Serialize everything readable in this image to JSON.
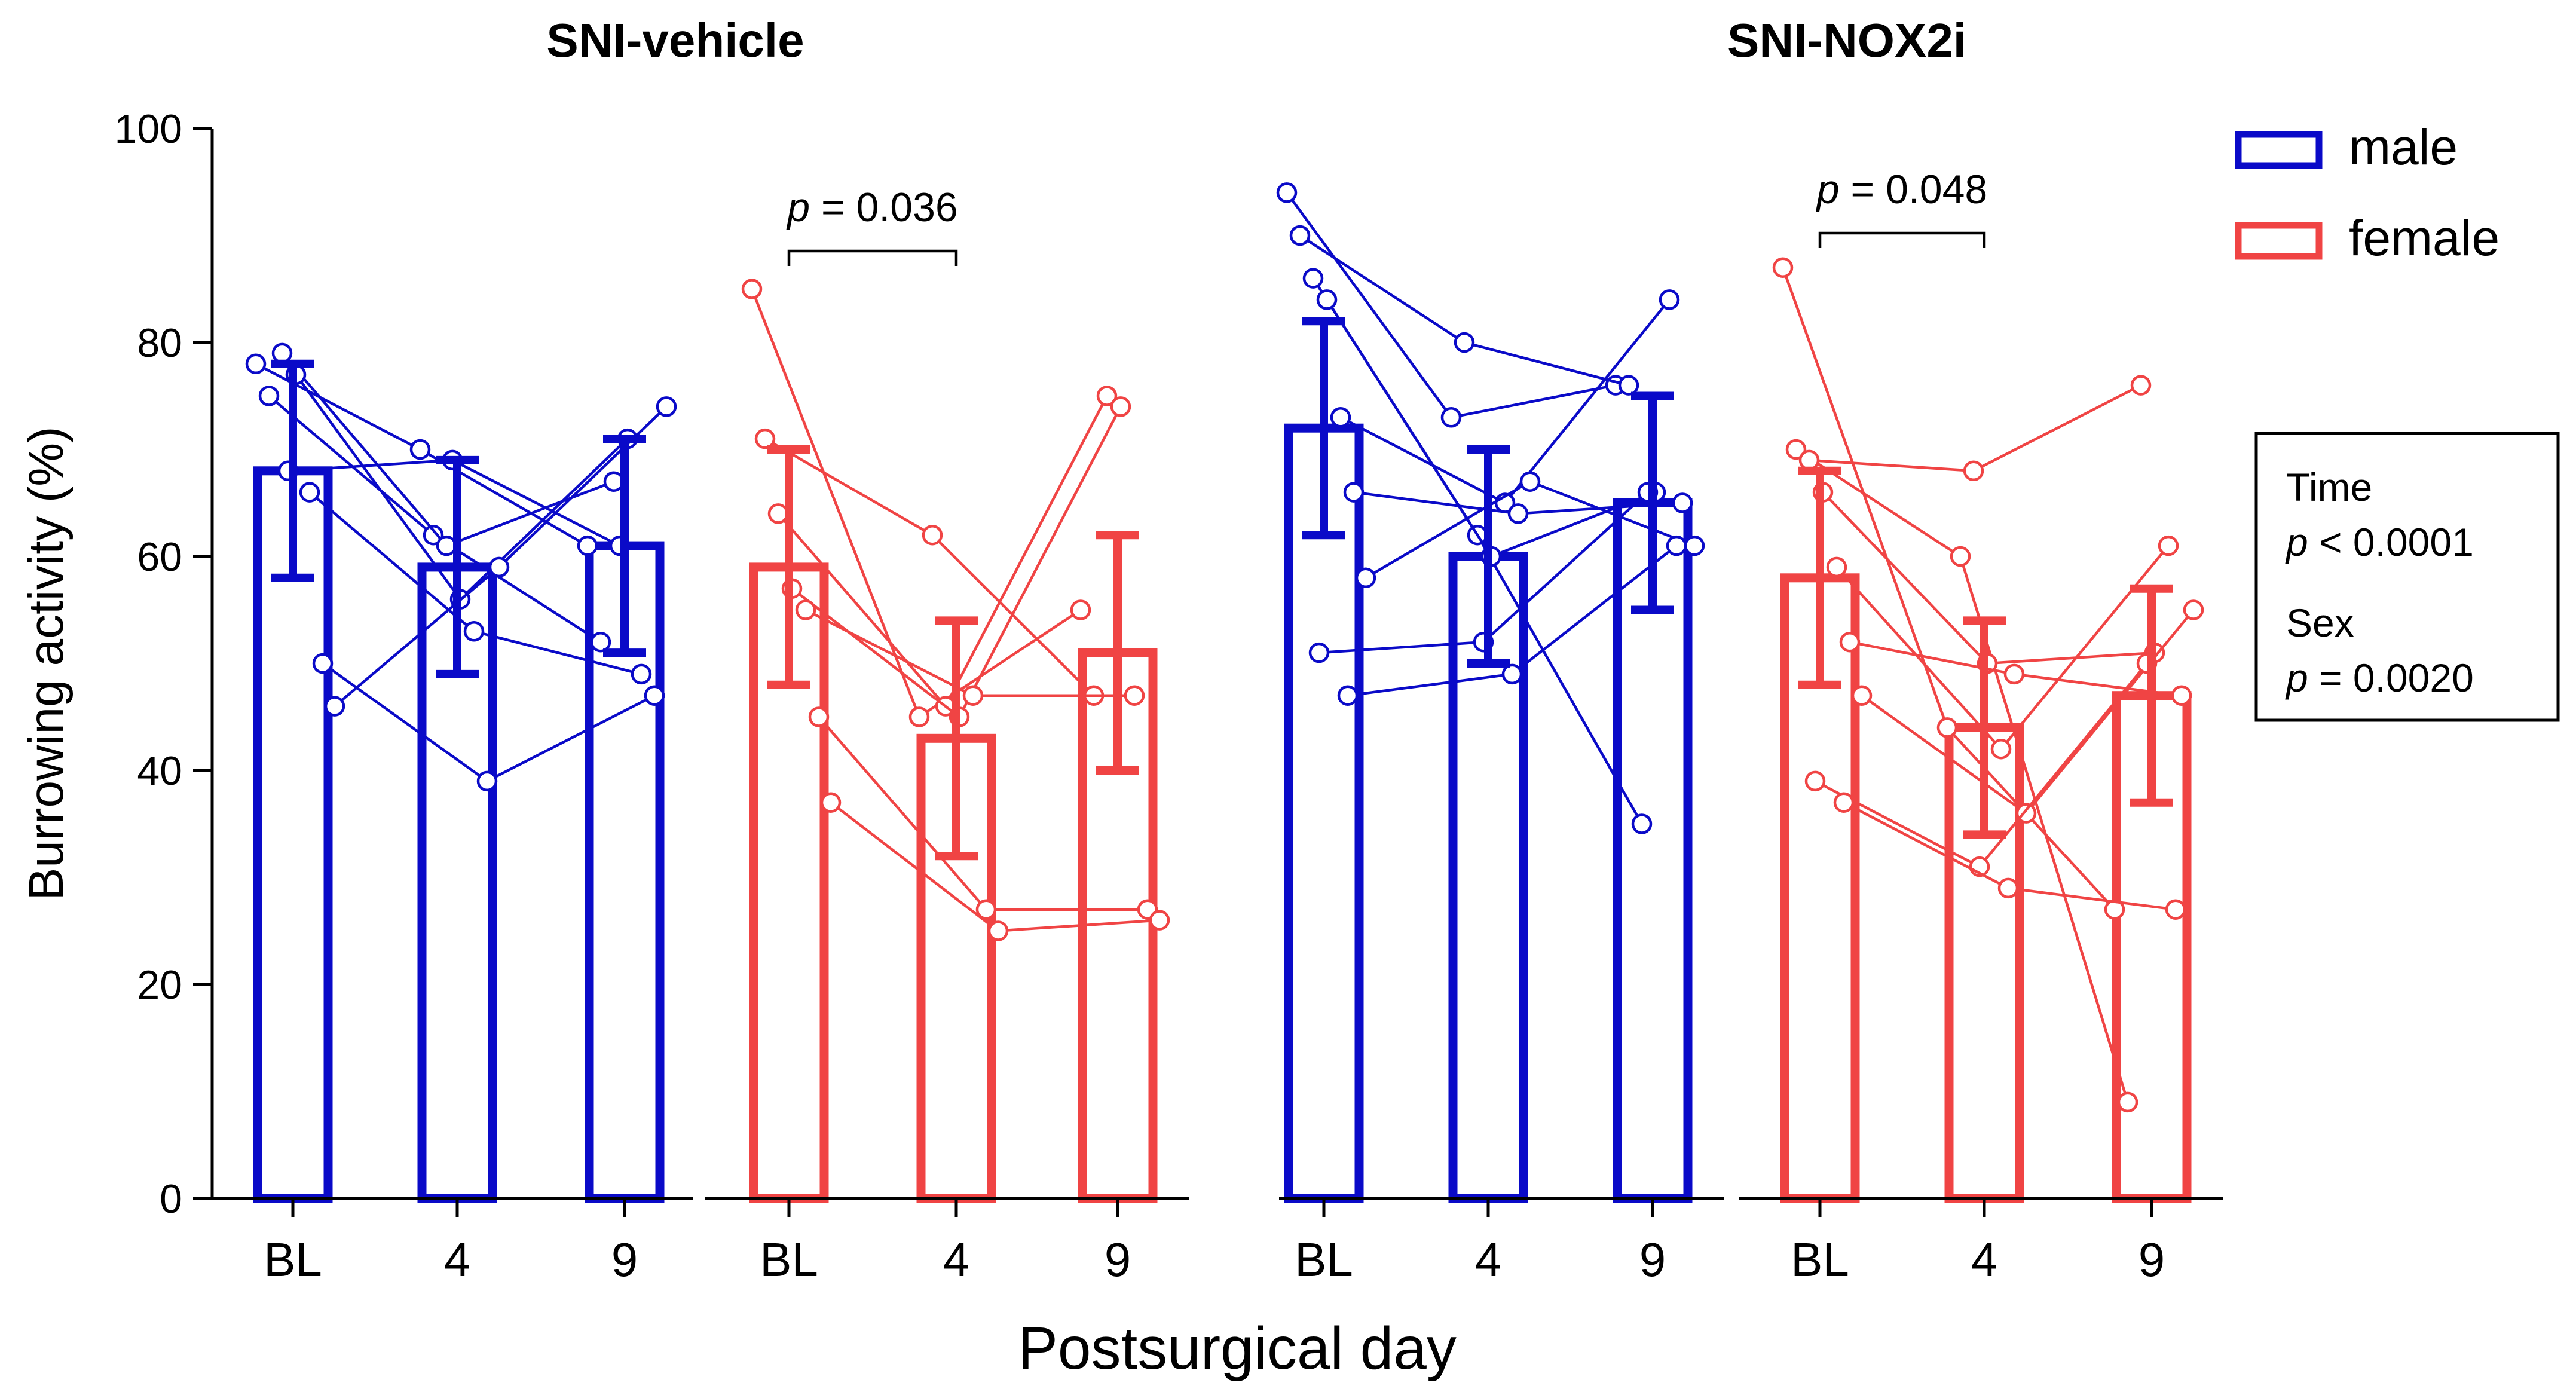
{
  "chart_data": {
    "type": "bar",
    "ylabel": "Burrowing activity  (%)",
    "xlabel": "Postsurgical day",
    "ylim": [
      0,
      100
    ],
    "yticks": [
      0,
      20,
      40,
      60,
      80,
      100
    ],
    "categories": [
      "BL",
      "4",
      "9"
    ],
    "colors": {
      "male": "#0a0ac8",
      "female": "#f04444"
    },
    "legend": {
      "position": "top-right",
      "entries": [
        {
          "label": "male",
          "series": "male"
        },
        {
          "label": "female",
          "series": "female"
        }
      ]
    },
    "stats_box": {
      "time_label": "Time",
      "time_p": "p < 0.0001",
      "sex_label": "Sex",
      "sex_p": "p = 0.0020"
    },
    "panels": [
      {
        "title": "SNI-vehicle",
        "groups": [
          {
            "series": "male",
            "means": [
              68,
              59,
              61
            ],
            "sd": [
              10,
              10,
              10
            ],
            "subjects": [
              [
                78,
                70,
                61
              ],
              [
                75,
                62,
                52
              ],
              [
                79,
                61,
                67
              ],
              [
                77,
                56,
                71
              ],
              [
                66,
                53,
                49
              ],
              [
                50,
                39,
                47
              ],
              [
                46,
                59,
                74
              ],
              [
                68,
                69,
                61
              ]
            ]
          },
          {
            "series": "female",
            "means": [
              59,
              43,
              51
            ],
            "sd": [
              11,
              11,
              11
            ],
            "sig": {
              "from": 0,
              "to": 1,
              "label": "p = 0.036"
            },
            "subjects": [
              [
                85,
                45,
                55
              ],
              [
                71,
                62,
                47
              ],
              [
                64,
                46,
                75
              ],
              [
                57,
                45,
                74
              ],
              [
                55,
                47,
                47
              ],
              [
                45,
                27,
                27
              ],
              [
                37,
                25,
                26
              ]
            ]
          }
        ]
      },
      {
        "title": "SNI-NOX2i",
        "groups": [
          {
            "series": "male",
            "means": [
              72,
              60,
              65
            ],
            "sd": [
              10,
              10,
              10
            ],
            "subjects": [
              [
                94,
                73,
                76
              ],
              [
                90,
                80,
                76
              ],
              [
                86,
                62,
                35
              ],
              [
                84,
                60,
                66
              ],
              [
                73,
                65,
                84
              ],
              [
                66,
                64,
                65
              ],
              [
                58,
                67,
                61
              ],
              [
                51,
                52,
                66
              ],
              [
                47,
                49,
                61
              ]
            ]
          },
          {
            "series": "female",
            "means": [
              58,
              44,
              47
            ],
            "sd": [
              10,
              10,
              10
            ],
            "sig": {
              "from": 0,
              "to": 1,
              "label": "p = 0.048"
            },
            "subjects": [
              [
                87,
                44,
                27
              ],
              [
                70,
                60,
                9
              ],
              [
                69,
                68,
                76
              ],
              [
                66,
                50,
                51
              ],
              [
                59,
                42,
                61
              ],
              [
                52,
                49,
                47
              ],
              [
                47,
                36,
                55
              ],
              [
                39,
                31,
                50
              ],
              [
                37,
                29,
                27
              ]
            ]
          }
        ]
      }
    ]
  }
}
